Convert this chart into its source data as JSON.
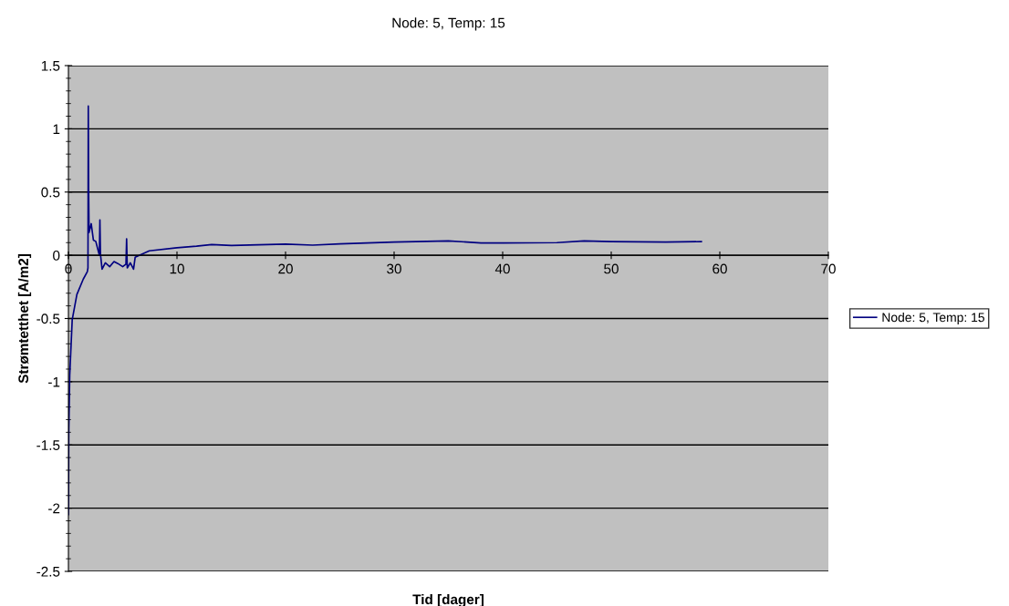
{
  "chart_data": {
    "type": "line",
    "title": "Node: 5, Temp: 15",
    "xlabel": "Tid [dager]",
    "ylabel": "Strømtetthet [A/m2]",
    "xlim": [
      0,
      70
    ],
    "xticks": [
      0,
      10,
      20,
      30,
      40,
      50,
      60,
      70
    ],
    "ylim": [
      -2.5,
      1.5
    ],
    "yticks": [
      -2.5,
      -2,
      -1.5,
      -1,
      -0.5,
      0,
      0.5,
      1,
      1.5
    ],
    "grid": "y",
    "legend": "right",
    "marker": "none",
    "line_style": "solid",
    "series": [
      {
        "name": "Node: 5, Temp: 15",
        "color": "#000080",
        "x": [
          0,
          0.03,
          0.12,
          0.35,
          0.78,
          1.36,
          1.74,
          1.8,
          1.83,
          1.86,
          1.9,
          2.1,
          2.3,
          2.52,
          2.7,
          2.85,
          2.9,
          2.95,
          3.1,
          3.4,
          3.8,
          4.2,
          4.55,
          5.0,
          5.3,
          5.36,
          5.42,
          5.7,
          6.0,
          6.15,
          7.45,
          10,
          11.8,
          13.2,
          15,
          20,
          22.5,
          25,
          30,
          35,
          38,
          40,
          45,
          47.5,
          50,
          55,
          58.3
        ],
        "values": [
          -2.05,
          -1.4,
          -0.95,
          -0.51,
          -0.31,
          -0.19,
          -0.13,
          -0.1,
          1.18,
          0.53,
          0.18,
          0.25,
          0.12,
          0.11,
          0.05,
          0.0,
          0.28,
          0.01,
          -0.11,
          -0.06,
          -0.09,
          -0.05,
          -0.065,
          -0.09,
          -0.07,
          0.13,
          -0.1,
          -0.06,
          -0.11,
          -0.015,
          0.035,
          0.06,
          0.072,
          0.085,
          0.077,
          0.088,
          0.08,
          0.09,
          0.105,
          0.114,
          0.097,
          0.097,
          0.1,
          0.114,
          0.108,
          0.105,
          0.108
        ]
      }
    ]
  }
}
